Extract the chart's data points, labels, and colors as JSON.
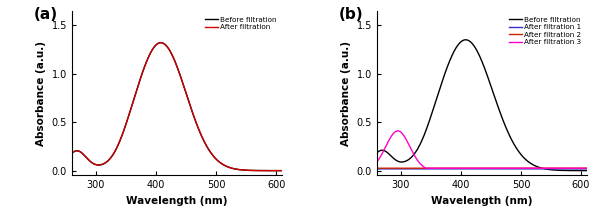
{
  "panel_a_label": "(a)",
  "panel_b_label": "(b)",
  "xlabel": "Wavelength (nm)",
  "ylabel": "Absorbance (a.u.)",
  "xlim": [
    260,
    610
  ],
  "ylim": [
    -0.05,
    1.65
  ],
  "yticks": [
    0.0,
    0.5,
    1.0,
    1.5
  ],
  "xticks": [
    300,
    400,
    500,
    600
  ],
  "panel_a_legend": [
    "Before filtration",
    "After filtration"
  ],
  "panel_b_legend": [
    "Before filtration",
    "After filtration 1",
    "After filtration 2",
    "After filtration 3"
  ],
  "colors_a": [
    "#000000",
    "#cc0000"
  ],
  "colors_b": [
    "#000000",
    "#3333cc",
    "#cc2200",
    "#ff00cc"
  ],
  "figsize": [
    5.99,
    2.14
  ],
  "dpi": 100
}
